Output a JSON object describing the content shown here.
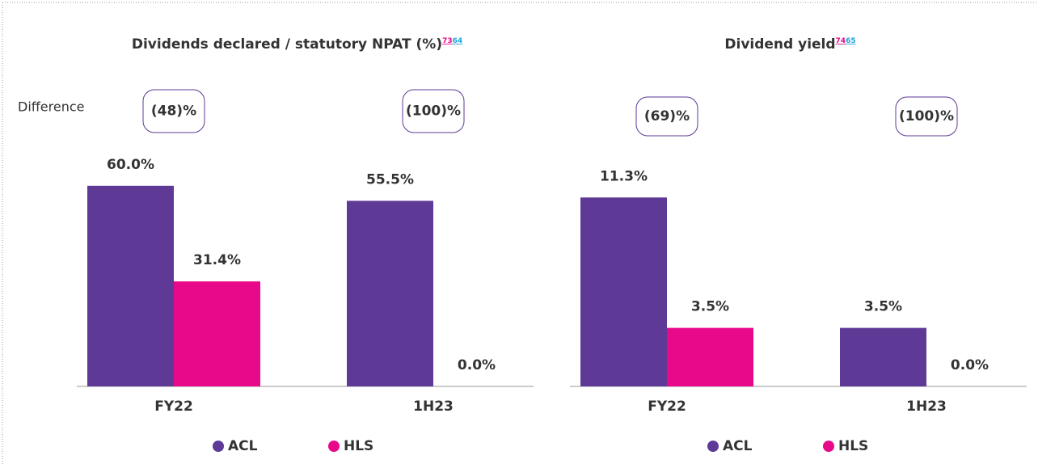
{
  "difference_label": "Difference",
  "chart_data": [
    {
      "type": "bar",
      "title": "Dividends declared / statutory NPAT (%)",
      "title_notes": [
        "73",
        "64"
      ],
      "categories": [
        "FY22",
        "1H23"
      ],
      "series": [
        {
          "name": "ACL",
          "color": "#5e3a96",
          "values": [
            60.0,
            55.5
          ],
          "value_labels": [
            "60.0%",
            "55.5%"
          ]
        },
        {
          "name": "HLS",
          "color": "#e8098a",
          "values": [
            31.4,
            0.0
          ],
          "value_labels": [
            "31.4%",
            "0.0%"
          ]
        }
      ],
      "annotations": [
        "(48)%",
        "(100)%"
      ],
      "ylim": [
        0,
        66
      ]
    },
    {
      "type": "bar",
      "title": "Dividend yield",
      "title_notes": [
        "74",
        "65"
      ],
      "categories": [
        "FY22",
        "1H23"
      ],
      "series": [
        {
          "name": "ACL",
          "color": "#5e3a96",
          "values": [
            11.3,
            3.5
          ],
          "value_labels": [
            "11.3%",
            "3.5%"
          ]
        },
        {
          "name": "HLS",
          "color": "#e8098a",
          "values": [
            3.5,
            0.0
          ],
          "value_labels": [
            "3.5%",
            "0.0%"
          ]
        }
      ],
      "annotations": [
        "(69)%",
        "(100)%"
      ],
      "ylim": [
        0,
        13.2
      ]
    }
  ]
}
